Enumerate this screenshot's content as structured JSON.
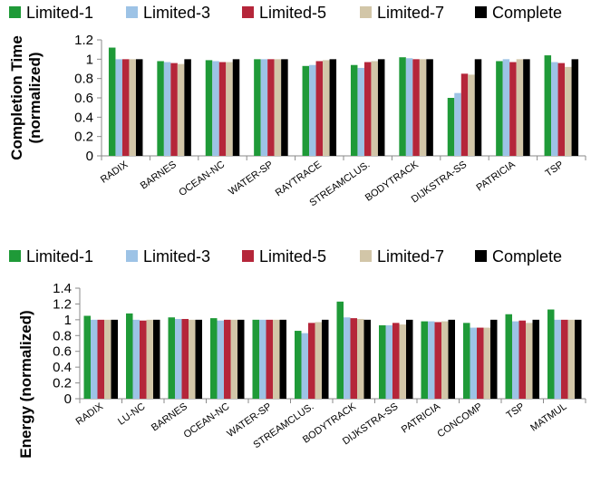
{
  "chart_data": [
    {
      "type": "bar",
      "ylabel_lines": [
        "Completion Time",
        "(normalized)"
      ],
      "ylim": [
        0,
        1.2
      ],
      "ytick_step": 0.2,
      "ytick_labels": [
        "0",
        "0.2",
        "0.4",
        "0.6",
        "0.8",
        "1",
        "1.2"
      ],
      "grid": false,
      "legend_position": "top",
      "categories": [
        "RADIX",
        "BARNES",
        "OCEAN-NC",
        "WATER-SP",
        "RAYTRACE",
        "STREAMCLUS.",
        "BODYTRACK",
        "DIJKSTRA-SS",
        "PATRICIA",
        "TSP"
      ],
      "series": [
        {
          "name": "Limited-1",
          "color": "#1f9a38",
          "values": [
            1.12,
            0.98,
            0.99,
            1.0,
            0.93,
            0.94,
            1.02,
            0.6,
            0.98,
            1.04
          ]
        },
        {
          "name": "Limited-3",
          "color": "#9dc3e6",
          "values": [
            1.0,
            0.97,
            0.98,
            1.0,
            0.94,
            0.91,
            1.01,
            0.65,
            1.0,
            0.97
          ]
        },
        {
          "name": "Limited-5",
          "color": "#b5263a",
          "values": [
            1.0,
            0.96,
            0.97,
            1.0,
            0.98,
            0.97,
            1.0,
            0.85,
            0.97,
            0.96
          ]
        },
        {
          "name": "Limited-7",
          "color": "#d2c6a8",
          "values": [
            1.0,
            0.95,
            0.97,
            1.0,
            0.99,
            0.98,
            1.0,
            0.84,
            1.0,
            0.92
          ]
        },
        {
          "name": "Complete",
          "color": "#000000",
          "values": [
            1.0,
            1.0,
            1.0,
            1.0,
            1.0,
            1.0,
            1.0,
            1.0,
            1.0,
            1.0
          ]
        }
      ]
    },
    {
      "type": "bar",
      "ylabel_lines": [
        "Energy (normalized)"
      ],
      "ylim": [
        0,
        1.4
      ],
      "ytick_step": 0.2,
      "ytick_labels": [
        "0",
        "0.2",
        "0.4",
        "0.6",
        "0.8",
        "1",
        "1.2",
        "1.4"
      ],
      "grid": false,
      "legend_position": "top",
      "categories": [
        "RADIX",
        "LU-NC",
        "BARNES",
        "OCEAN-NC",
        "WATER-SP",
        "STREAMCLUS.",
        "BODYTRACK",
        "DIJKSTRA-SS",
        "PATRICIA",
        "CONCOMP",
        "TSP",
        "MATMUL"
      ],
      "series": [
        {
          "name": "Limited-1",
          "color": "#1f9a38",
          "values": [
            1.05,
            1.08,
            1.03,
            1.02,
            1.0,
            0.86,
            1.23,
            0.93,
            0.98,
            0.96,
            1.07,
            1.13
          ]
        },
        {
          "name": "Limited-3",
          "color": "#9dc3e6",
          "values": [
            1.0,
            1.0,
            1.01,
            0.99,
            1.0,
            0.83,
            1.03,
            0.93,
            0.98,
            0.9,
            0.98,
            1.0
          ]
        },
        {
          "name": "Limited-5",
          "color": "#b5263a",
          "values": [
            1.0,
            0.99,
            1.01,
            1.0,
            1.0,
            0.96,
            1.02,
            0.96,
            0.97,
            0.9,
            0.99,
            1.0
          ]
        },
        {
          "name": "Limited-7",
          "color": "#d2c6a8",
          "values": [
            1.0,
            1.0,
            1.0,
            1.0,
            1.0,
            0.97,
            1.01,
            0.94,
            0.98,
            0.9,
            0.96,
            1.0
          ]
        },
        {
          "name": "Complete",
          "color": "#000000",
          "values": [
            1.0,
            1.0,
            1.0,
            1.0,
            1.0,
            1.0,
            1.0,
            1.0,
            1.0,
            1.0,
            1.0,
            1.0
          ]
        }
      ]
    }
  ]
}
